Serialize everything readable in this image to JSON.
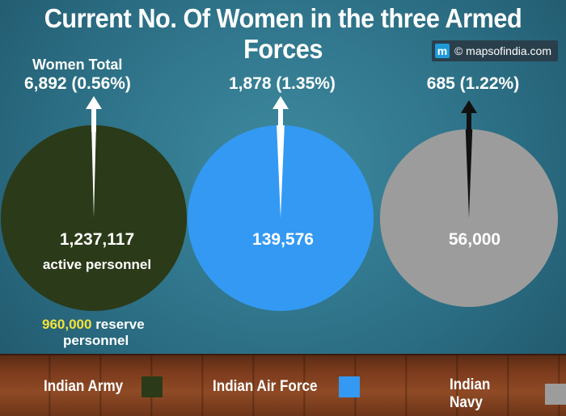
{
  "title": "Current No. Of Women in the three Armed Forces",
  "brand": {
    "logo_letter": "m",
    "text": "© mapsofindia.com"
  },
  "colors": {
    "army": "#2b3a18",
    "airforce": "#3399f3",
    "navy": "#9c9c9c"
  },
  "chart_data": {
    "type": "pie",
    "title": "Current No. Of Women in the three Armed Forces",
    "pies": [
      {
        "name": "Indian Army",
        "total": 1237117,
        "total_label": "1,237,117",
        "total_sublabel": "active personnel",
        "women": 6892,
        "women_label_line1": "Women Total",
        "women_label": "6,892 (0.56%)",
        "women_percent": 0.56,
        "reserve_value": "960,000",
        "reserve_text_1": "reserve",
        "reserve_text_2": "personnel",
        "color": "#2b3a18"
      },
      {
        "name": "Indian Air Force",
        "total": 139576,
        "total_label": "139,576",
        "women": 1878,
        "women_label": "1,878 (1.35%)",
        "women_percent": 1.35,
        "color": "#3399f3"
      },
      {
        "name": "Indian Navy",
        "total": 56000,
        "total_label": "56,000",
        "women": 685,
        "women_label": "685 (1.22%)",
        "women_percent": 1.22,
        "color": "#9c9c9c"
      }
    ],
    "legend": [
      {
        "label": "Indian Army",
        "color": "#2b3a18"
      },
      {
        "label": "Indian Air Force",
        "color": "#3399f3"
      },
      {
        "label": "Indian Navy",
        "color": "#9c9c9c"
      }
    ],
    "legend_position": "bottom"
  }
}
